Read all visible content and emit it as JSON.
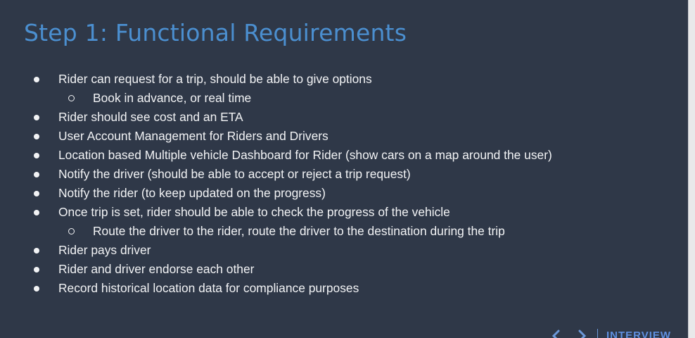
{
  "slide": {
    "title": "Step 1: Functional Requirements",
    "bullets": [
      {
        "level": 1,
        "text": "Rider can request for a trip, should be able to give options"
      },
      {
        "level": 2,
        "text": "Book in advance, or real time"
      },
      {
        "level": 1,
        "text": "Rider should see cost and an ETA"
      },
      {
        "level": 1,
        "text": "User Account Management for Riders and Drivers"
      },
      {
        "level": 1,
        "text": "Location based Multiple vehicle Dashboard for Rider (show cars on a map around the user)"
      },
      {
        "level": 1,
        "text": "Notify the driver (should be able to accept or reject a trip request)"
      },
      {
        "level": 1,
        "text": "Notify the rider (to keep updated on the progress)"
      },
      {
        "level": 1,
        "text": "Once trip is set, rider should be able to check the progress of the vehicle"
      },
      {
        "level": 2,
        "text": "Route the driver to the rider, route the driver to the destination during the trip"
      },
      {
        "level": 1,
        "text": "Rider pays driver"
      },
      {
        "level": 1,
        "text": "Rider and driver endorse each other"
      },
      {
        "level": 1,
        "text": "Record historical location data for compliance purposes"
      }
    ]
  },
  "brand": {
    "text": "INTERVIEW"
  },
  "colors": {
    "background": "#2f3848",
    "title": "#4b8fd0",
    "body_text": "#f2f3f5",
    "brand": "#5f8fe0"
  }
}
